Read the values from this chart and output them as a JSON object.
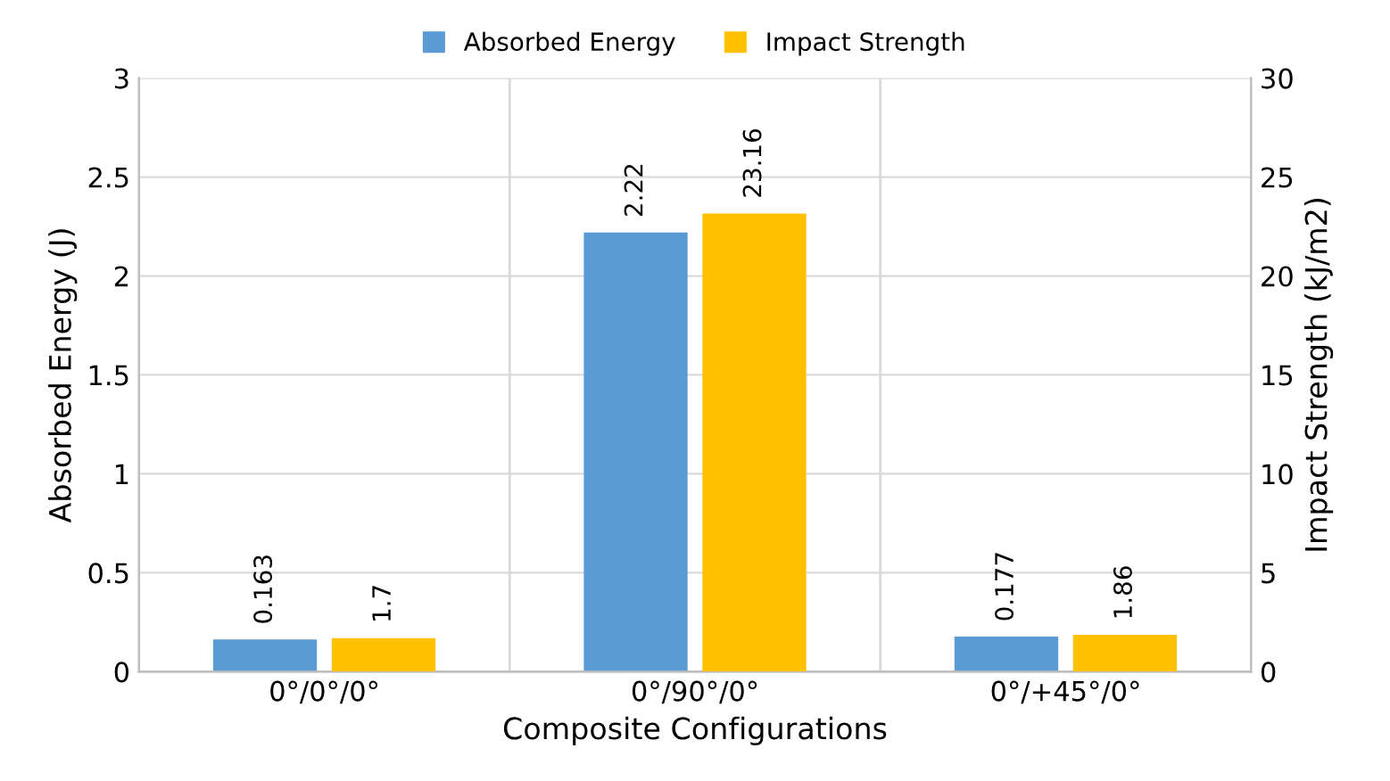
{
  "chart_data": {
    "type": "bar",
    "xlabel": "Composite Configurations",
    "ylabel": "Absorbed Energy (J)",
    "y2label": "Impact Strength (kJ/m2)",
    "categories": [
      "0°/0°/0°",
      "0°/90°/0°",
      "0°/+45°/0°"
    ],
    "series": [
      {
        "name": "Absorbed Energy",
        "color": "#5b9bd5",
        "values": [
          0.163,
          2.22,
          0.177
        ]
      },
      {
        "name": "Impact Strength",
        "color": "#ffc000",
        "values": [
          1.7,
          23.16,
          1.86
        ],
        "axis": "y2"
      }
    ],
    "ylim": [
      0,
      3
    ],
    "yticks": [
      0,
      0.5,
      1,
      1.5,
      2,
      2.5,
      3
    ],
    "y2lim": [
      0,
      30
    ],
    "y2ticks": [
      0,
      5,
      10,
      15,
      20,
      25,
      30
    ],
    "data_labels": true,
    "grid": "y",
    "legend": "top"
  }
}
